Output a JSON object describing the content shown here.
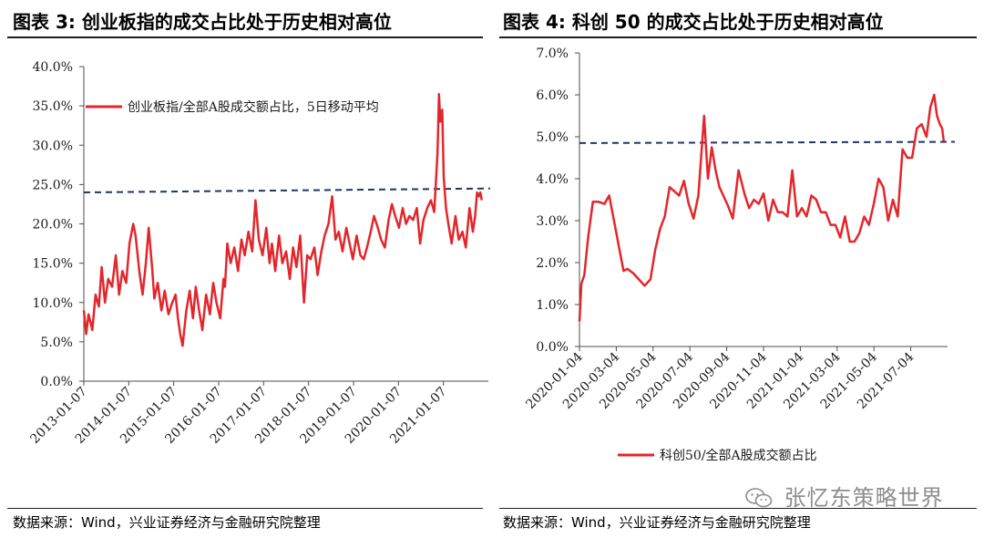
{
  "left": {
    "title": "图表 3:  创业板指的成交占比处于历史相对高位",
    "source": "数据来源：Wind，兴业证券经济与金融研究院整理",
    "chart_data": {
      "type": "line",
      "y_ticks": [
        "0.0%",
        "5.0%",
        "10.0%",
        "15.0%",
        "20.0%",
        "25.0%",
        "30.0%",
        "35.0%",
        "40.0%"
      ],
      "ylim": [
        0,
        40
      ],
      "x_ticks": [
        "2013-01-07",
        "2014-01-07",
        "2015-01-07",
        "2016-01-07",
        "2017-01-07",
        "2018-01-07",
        "2019-01-07",
        "2020-01-07",
        "2021-01-07"
      ],
      "xlim": [
        2013.0,
        2021.6
      ],
      "legend": "创业板指/全部A股成交额占比，5日移动平均",
      "legend_position": "top-left",
      "reference_line": {
        "y": 24.0,
        "y_end": 24.5,
        "style": "dashed",
        "color": "#1f3864"
      },
      "series": [
        {
          "name": "创业板指/全部A股成交额占比，5日移动平均",
          "color": "#e3262b",
          "x": [
            2013.0,
            2013.05,
            2013.1,
            2013.18,
            2013.25,
            2013.32,
            2013.38,
            2013.45,
            2013.52,
            2013.6,
            2013.68,
            2013.75,
            2013.82,
            2013.9,
            2013.97,
            2014.05,
            2014.1,
            2014.18,
            2014.25,
            2014.32,
            2014.38,
            2014.45,
            2014.5,
            2014.57,
            2014.65,
            2014.72,
            2014.8,
            2014.88,
            2014.95,
            2015.0,
            2015.05,
            2015.1,
            2015.18,
            2015.25,
            2015.32,
            2015.38,
            2015.45,
            2015.52,
            2015.6,
            2015.68,
            2015.75,
            2015.82,
            2015.9,
            2015.97,
            2016.0,
            2016.05,
            2016.12,
            2016.2,
            2016.28,
            2016.35,
            2016.42,
            2016.5,
            2016.58,
            2016.65,
            2016.72,
            2016.8,
            2016.88,
            2016.95,
            2017.0,
            2017.07,
            2017.15,
            2017.22,
            2017.3,
            2017.38,
            2017.45,
            2017.52,
            2017.6,
            2017.68,
            2017.75,
            2017.82,
            2017.9,
            2017.97,
            2018.05,
            2018.12,
            2018.2,
            2018.28,
            2018.35,
            2018.42,
            2018.5,
            2018.58,
            2018.65,
            2018.72,
            2018.8,
            2018.88,
            2018.95,
            2019.02,
            2019.1,
            2019.17,
            2019.25,
            2019.32,
            2019.4,
            2019.48,
            2019.55,
            2019.62,
            2019.7,
            2019.78,
            2019.85,
            2019.92,
            2020.0,
            2020.08,
            2020.15,
            2020.22,
            2020.3,
            2020.38,
            2020.45,
            2020.52,
            2020.55,
            2020.58,
            2020.62,
            2020.65,
            2020.7,
            2020.75,
            2020.82,
            2020.9,
            2020.97,
            2021.05,
            2021.12,
            2021.2,
            2021.27,
            2021.32,
            2021.36,
            2021.4,
            2021.43,
            2021.46
          ],
          "values": [
            9.0,
            6.0,
            8.5,
            6.5,
            11.0,
            9.5,
            14.5,
            10.0,
            13.0,
            12.0,
            16.0,
            11.0,
            14.0,
            12.5,
            17.5,
            20.0,
            18.5,
            14.0,
            11.0,
            15.0,
            19.5,
            14.5,
            10.5,
            12.5,
            9.0,
            11.5,
            8.5,
            10.0,
            11.0,
            8.0,
            6.0,
            4.5,
            9.0,
            11.5,
            8.0,
            12.0,
            9.0,
            6.5,
            11.0,
            8.5,
            12.5,
            10.0,
            8.0,
            13.0,
            12.0,
            17.5,
            15.0,
            17.0,
            14.0,
            18.0,
            16.0,
            19.0,
            16.5,
            23.0,
            18.0,
            16.0,
            19.5,
            15.0,
            17.5,
            14.0,
            18.5,
            15.0,
            16.5,
            13.0,
            17.0,
            14.5,
            18.5,
            10.0,
            16.0,
            15.5,
            17.0,
            13.5,
            16.5,
            18.5,
            20.0,
            23.5,
            18.0,
            19.0,
            16.5,
            19.5,
            17.5,
            15.5,
            18.5,
            16.0,
            15.5,
            17.0,
            19.0,
            21.0,
            19.5,
            18.0,
            17.0,
            20.5,
            22.5,
            21.0,
            19.5,
            22.0,
            20.0,
            21.0,
            20.5,
            22.0,
            17.5,
            20.5,
            22.0,
            23.0,
            21.5,
            29.0,
            36.5,
            33.0,
            34.5,
            26.0,
            22.0,
            20.0,
            17.5,
            21.0,
            18.0,
            19.0,
            17.0,
            22.0,
            19.0,
            21.0,
            24.0,
            23.5,
            24.0,
            23.0
          ]
        }
      ]
    }
  },
  "right": {
    "title": "图表 4:  科创 50 的成交占比处于历史相对高位",
    "source": "数据来源：Wind，兴业证券经济与金融研究院整理",
    "chart_data": {
      "type": "line",
      "y_ticks": [
        "0.0%",
        "1.0%",
        "2.0%",
        "3.0%",
        "4.0%",
        "5.0%",
        "6.0%",
        "7.0%"
      ],
      "ylim": [
        0,
        7
      ],
      "x_ticks": [
        "2020-01-04",
        "2020-03-04",
        "2020-05-04",
        "2020-07-04",
        "2020-09-04",
        "2020-11-04",
        "2021-01-04",
        "2021-03-04",
        "2021-05-04",
        "2021-07-04"
      ],
      "xlim": [
        0,
        19.2
      ],
      "legend": "科创50/全部A股成交额占比",
      "legend_position": "bottom",
      "reference_line": {
        "y": 4.85,
        "y_end": 4.88,
        "style": "dashed",
        "color": "#1f3864"
      },
      "series": [
        {
          "name": "科创50/全部A股成交额占比",
          "color": "#e3262b",
          "x": [
            0,
            0.1,
            0.25,
            0.45,
            0.7,
            1.0,
            1.3,
            1.55,
            1.8,
            2.05,
            2.3,
            2.5,
            2.8,
            3.1,
            3.4,
            3.7,
            3.95,
            4.2,
            4.45,
            4.7,
            4.95,
            5.2,
            5.45,
            5.7,
            5.95,
            6.2,
            6.5,
            6.7,
            6.9,
            7.1,
            7.3,
            7.5,
            7.75,
            8.0,
            8.3,
            8.6,
            8.85,
            9.1,
            9.35,
            9.6,
            9.85,
            10.1,
            10.35,
            10.6,
            10.85,
            11.1,
            11.35,
            11.6,
            11.85,
            12.1,
            12.35,
            12.6,
            12.85,
            13.1,
            13.35,
            13.6,
            13.85,
            14.1,
            14.35,
            14.6,
            14.85,
            15.1,
            15.35,
            15.6,
            15.85,
            16.1,
            16.35,
            16.6,
            16.85,
            17.1,
            17.35,
            17.6,
            17.85,
            18.1,
            18.3,
            18.5,
            18.65,
            18.8,
            18.92,
            19.0
          ],
          "values": [
            0.6,
            1.5,
            1.7,
            2.6,
            3.45,
            3.45,
            3.4,
            3.6,
            3.0,
            2.4,
            1.8,
            1.85,
            1.75,
            1.6,
            1.45,
            1.6,
            2.3,
            2.8,
            3.1,
            3.8,
            3.7,
            3.6,
            3.95,
            3.4,
            3.05,
            3.6,
            5.5,
            4.0,
            4.75,
            4.2,
            3.8,
            3.6,
            3.35,
            3.05,
            4.2,
            3.65,
            3.3,
            3.5,
            3.4,
            3.65,
            3.0,
            3.5,
            3.2,
            3.2,
            3.1,
            4.2,
            3.1,
            3.3,
            3.1,
            3.6,
            3.5,
            3.2,
            3.2,
            2.9,
            2.9,
            2.6,
            3.1,
            2.5,
            2.5,
            2.7,
            3.1,
            2.9,
            3.4,
            4.0,
            3.8,
            3.0,
            3.5,
            3.1,
            4.7,
            4.5,
            4.5,
            5.2,
            5.3,
            5.0,
            5.7,
            6.0,
            5.5,
            5.3,
            5.2,
            4.9
          ]
        }
      ]
    }
  }
}
